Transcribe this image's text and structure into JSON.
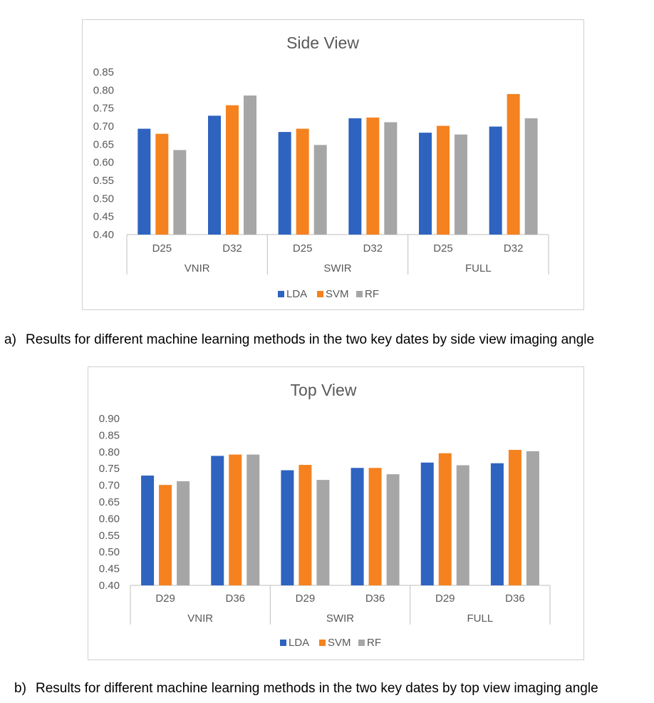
{
  "charts": {
    "side": {
      "caption_label": "a)",
      "caption_text": "Results for different machine learning methods in the two key dates by side view imaging angle"
    },
    "top": {
      "caption_label": "b)",
      "caption_text": "Results for different machine learning methods in the two key dates by top view imaging angle"
    }
  },
  "colors": {
    "LDA": "#2e63c0",
    "SVM": "#f5821f",
    "RF": "#a6a6a6",
    "axis": "#bfbfbf",
    "text": "#595959"
  },
  "chart_data": [
    {
      "type": "bar",
      "title": "Side View",
      "groups": [
        "VNIR",
        "SWIR",
        "FULL"
      ],
      "categories": [
        "D25",
        "D32",
        "D25",
        "D32",
        "D25",
        "D32"
      ],
      "series": [
        {
          "name": "LDA",
          "values": [
            0.693,
            0.729,
            0.684,
            0.722,
            0.682,
            0.699
          ]
        },
        {
          "name": "SVM",
          "values": [
            0.679,
            0.758,
            0.693,
            0.724,
            0.701,
            0.789
          ]
        },
        {
          "name": "RF",
          "values": [
            0.634,
            0.785,
            0.648,
            0.711,
            0.677,
            0.722
          ]
        }
      ],
      "yticks": [
        "0.40",
        "0.45",
        "0.50",
        "0.55",
        "0.60",
        "0.65",
        "0.70",
        "0.75",
        "0.80",
        "0.85"
      ],
      "ylim": [
        0.4,
        0.85
      ],
      "legend": [
        "LDA",
        "SVM",
        "RF"
      ]
    },
    {
      "type": "bar",
      "title": "Top View",
      "groups": [
        "VNIR",
        "SWIR",
        "FULL"
      ],
      "categories": [
        "D29",
        "D36",
        "D29",
        "D36",
        "D29",
        "D36"
      ],
      "series": [
        {
          "name": "LDA",
          "values": [
            0.729,
            0.788,
            0.745,
            0.752,
            0.768,
            0.766
          ]
        },
        {
          "name": "SVM",
          "values": [
            0.701,
            0.792,
            0.761,
            0.752,
            0.796,
            0.806
          ]
        },
        {
          "name": "RF",
          "values": [
            0.712,
            0.792,
            0.716,
            0.733,
            0.76,
            0.802
          ]
        }
      ],
      "yticks": [
        "0.40",
        "0.45",
        "0.50",
        "0.55",
        "0.60",
        "0.65",
        "0.70",
        "0.75",
        "0.80",
        "0.85",
        "0.90"
      ],
      "ylim": [
        0.4,
        0.9
      ],
      "legend": [
        "LDA",
        "SVM",
        "RF"
      ]
    }
  ]
}
